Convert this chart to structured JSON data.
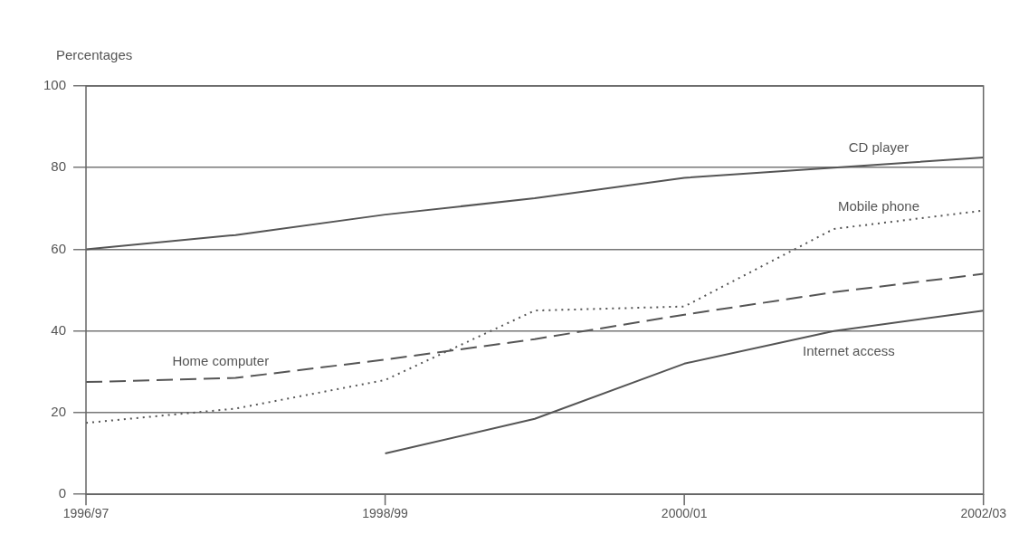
{
  "chart_data": {
    "type": "line",
    "ylabel": "Percentages",
    "categories": [
      "1996/97",
      null,
      "1998/99",
      null,
      "2000/01",
      null,
      "2002/03"
    ],
    "series": [
      {
        "name": "CD player",
        "color": "#555555",
        "line_style": "solid",
        "values": [
          60,
          63.5,
          68.5,
          72.5,
          77.5,
          80,
          82.5
        ]
      },
      {
        "name": "Mobile phone",
        "color": "#555555",
        "line_style": "dotted",
        "values": [
          17.5,
          21,
          28,
          45,
          46,
          65,
          69.5
        ]
      },
      {
        "name": "Home computer",
        "color": "#555555",
        "line_style": "dashed",
        "values": [
          27.5,
          28.5,
          33,
          38,
          44,
          49.5,
          54
        ]
      },
      {
        "name": "Internet access",
        "color": "#555555",
        "line_style": "solid",
        "values": [
          null,
          null,
          10,
          18.5,
          32,
          40,
          45
        ]
      }
    ],
    "ylim": [
      0,
      100
    ],
    "yticks": [
      0,
      20,
      40,
      60,
      80,
      100
    ],
    "grid": "y",
    "legend": false,
    "marker": "none"
  }
}
